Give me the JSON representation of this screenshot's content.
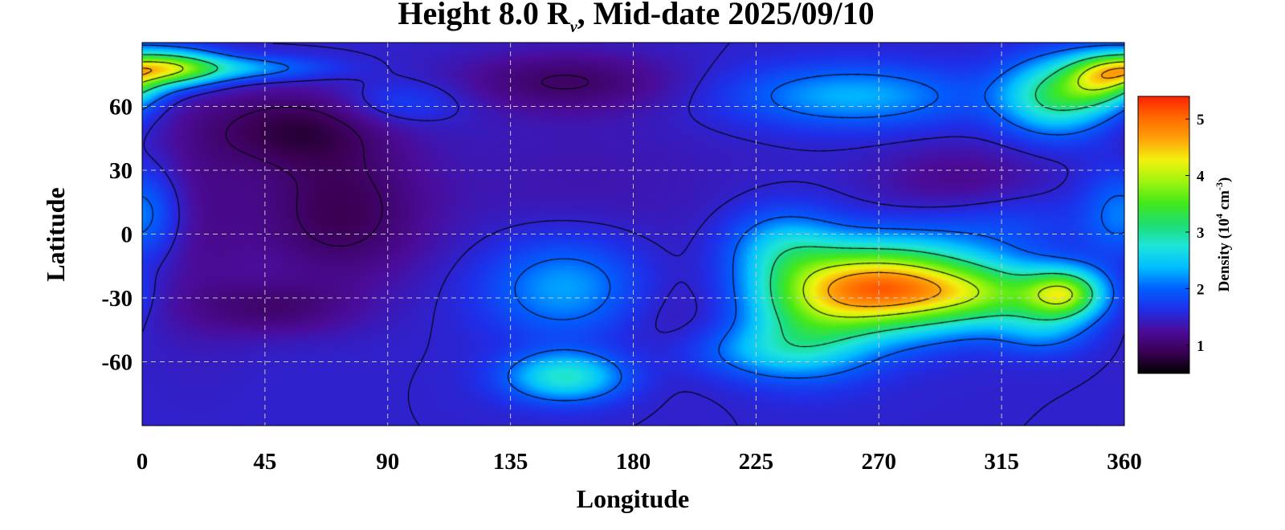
{
  "chart_data": {
    "type": "heatmap",
    "title": {
      "prefix": "Height 8.0 R",
      "subscript": "v",
      "suffix": ", Mid-date 2025/09/10"
    },
    "xlabel": "Longitude",
    "ylabel": "Latitude",
    "xlim": [
      0,
      360
    ],
    "ylim": [
      -90,
      90
    ],
    "x_ticks": [
      0,
      45,
      90,
      135,
      180,
      225,
      270,
      315,
      360
    ],
    "x_tick_labels": [
      "0",
      "45",
      "90",
      "135",
      "180",
      "225",
      "270",
      "315",
      "360"
    ],
    "y_ticks": [
      60,
      30,
      0,
      -30,
      -60
    ],
    "y_tick_labels": [
      "60",
      "30",
      "0",
      "-30",
      "-60"
    ],
    "grid": true,
    "colorbar": {
      "label_prefix": "Density (10",
      "label_exp1": "4",
      "label_mid": " cm",
      "label_exp2": "-3",
      "label_suffix": ")",
      "range": [
        0.5,
        5.4
      ],
      "ticks": [
        1,
        2,
        3,
        4,
        5
      ],
      "tick_labels": [
        "1",
        "2",
        "3",
        "4",
        "5"
      ],
      "colormap": [
        "#000000",
        "#3a0052",
        "#4b0c9a",
        "#1f2ee8",
        "#0060ff",
        "#00bfff",
        "#1fe4d8",
        "#1ede6f",
        "#44e81a",
        "#9ef40e",
        "#f2f20e",
        "#ffa20a",
        "#ff6a00",
        "#ff2200"
      ]
    },
    "background_level": 1.5,
    "features": [
      {
        "lon": 55,
        "lat": 50,
        "slon": 22,
        "slat": 13,
        "amp": -0.6
      },
      {
        "lon": 72,
        "lat": 10,
        "slon": 22,
        "slat": 24,
        "amp": -0.6
      },
      {
        "lon": 48,
        "lat": -35,
        "slon": 20,
        "slat": 9,
        "amp": -0.4
      },
      {
        "lon": 155,
        "lat": 72,
        "slon": 28,
        "slat": 10,
        "amp": -0.5
      },
      {
        "lon": 20,
        "lat": 10,
        "slon": 15,
        "slat": 40,
        "amp": -0.3
      },
      {
        "lon": 160,
        "lat": 25,
        "slon": 45,
        "slat": 25,
        "amp": -0.15
      },
      {
        "lon": 300,
        "lat": 25,
        "slon": 22,
        "slat": 12,
        "amp": -0.35
      },
      {
        "lon": 200,
        "lat": -40,
        "slon": 20,
        "slat": 20,
        "amp": -0.2
      },
      {
        "lon": 8,
        "lat": 78,
        "slon": 14,
        "slat": 6,
        "amp": 2.2
      },
      {
        "lon": 35,
        "lat": 78,
        "slon": 22,
        "slat": 4,
        "amp": 0.8
      },
      {
        "lon": 95,
        "lat": 62,
        "slon": 16,
        "slat": 7,
        "amp": 0.35
      },
      {
        "lon": 0,
        "lat": 10,
        "slon": 10,
        "slat": 15,
        "amp": 0.7
      },
      {
        "lon": 155,
        "lat": -25,
        "slon": 20,
        "slat": 16,
        "amp": 0.8
      },
      {
        "lon": 155,
        "lat": -67,
        "slon": 15,
        "slat": 8,
        "amp": 1.3
      },
      {
        "lon": 260,
        "lat": 65,
        "slon": 30,
        "slat": 10,
        "amp": 0.85
      },
      {
        "lon": 315,
        "lat": 5,
        "slon": 22,
        "slat": 12,
        "amp": 0.3
      },
      {
        "lon": 335,
        "lat": 65,
        "slon": 14,
        "slat": 12,
        "amp": 1.6
      },
      {
        "lon": 352,
        "lat": 72,
        "slon": 10,
        "slat": 8,
        "amp": 1.6
      },
      {
        "lon": 272,
        "lat": -25,
        "slon": 25,
        "slat": 14,
        "amp": 3.2
      },
      {
        "lon": 244,
        "lat": -38,
        "slon": 18,
        "slat": 18,
        "amp": 1.0
      },
      {
        "lon": 230,
        "lat": -55,
        "slon": 22,
        "slat": 9,
        "amp": 0.7
      },
      {
        "lon": 312,
        "lat": -28,
        "slon": 20,
        "slat": 10,
        "amp": 1.3
      },
      {
        "lon": 338,
        "lat": -28,
        "slon": 10,
        "slat": 8,
        "amp": 2.0
      },
      {
        "lon": 330,
        "lat": -45,
        "slon": 12,
        "slat": 8,
        "amp": 0.6
      },
      {
        "lon": 235,
        "lat": -5,
        "slon": 14,
        "slat": 12,
        "amp": 0.8
      }
    ],
    "contour_levels": [
      1.0,
      1.5,
      2.0,
      3.0,
      4.0,
      4.6
    ]
  }
}
